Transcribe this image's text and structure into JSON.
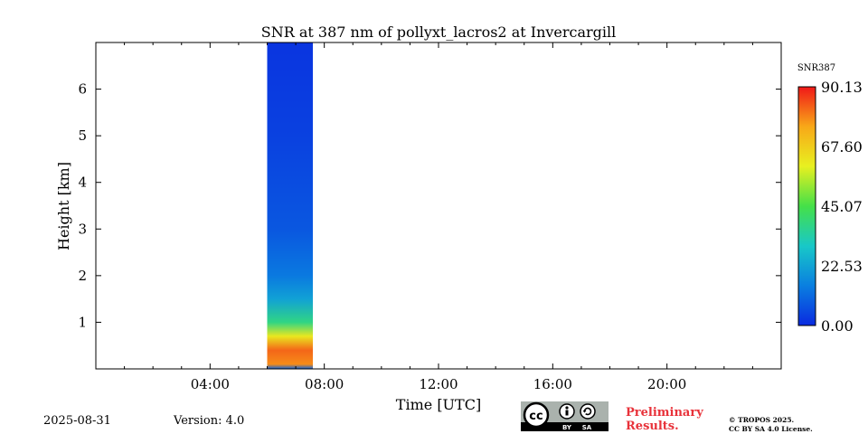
{
  "chart_data": {
    "type": "heatmap",
    "title": "SNR at 387 nm of pollyxt_lacros2 at Invercargill",
    "xlabel": "Time [UTC]",
    "ylabel": "Height [km]",
    "xlim_hours": [
      0,
      24
    ],
    "ylim_km": [
      0,
      7
    ],
    "x_ticks": [
      {
        "hour": 4,
        "label": "04:00"
      },
      {
        "hour": 8,
        "label": "08:00"
      },
      {
        "hour": 12,
        "label": "12:00"
      },
      {
        "hour": 16,
        "label": "16:00"
      },
      {
        "hour": 20,
        "label": "20:00"
      }
    ],
    "y_ticks": [
      {
        "km": 1,
        "label": "1"
      },
      {
        "km": 2,
        "label": "2"
      },
      {
        "km": 3,
        "label": "3"
      },
      {
        "km": 4,
        "label": "4"
      },
      {
        "km": 5,
        "label": "5"
      },
      {
        "km": 6,
        "label": "6"
      }
    ],
    "data_time_range_hours": [
      6.0,
      7.6
    ],
    "snr_profile": [
      {
        "height_km": 0.0,
        "snr": 10
      },
      {
        "height_km": 0.1,
        "snr": 78
      },
      {
        "height_km": 0.4,
        "snr": 82
      },
      {
        "height_km": 0.7,
        "snr": 62
      },
      {
        "height_km": 1.0,
        "snr": 38
      },
      {
        "height_km": 1.5,
        "snr": 22
      },
      {
        "height_km": 2.0,
        "snr": 14
      },
      {
        "height_km": 3.0,
        "snr": 8
      },
      {
        "height_km": 5.0,
        "snr": 4
      },
      {
        "height_km": 7.0,
        "snr": 2
      }
    ],
    "colorbar": {
      "label": "SNR387",
      "min": 0.0,
      "max": 90.13,
      "tick_labels": [
        "0.00",
        "22.53",
        "45.07",
        "67.60",
        "90.13"
      ],
      "colors": [
        "#0a2ae0",
        "#0a7fe0",
        "#18c8c8",
        "#45e048",
        "#e8f020",
        "#f8a818",
        "#f01818"
      ]
    }
  },
  "footer": {
    "date": "2025-08-31",
    "version": "Version: 4.0",
    "preliminary_line1": "Preliminary",
    "preliminary_line2": "Results.",
    "copyright_line1": "© TROPOS 2025.",
    "copyright_line2": "CC BY SA 4.0 License.",
    "cc_by": "BY",
    "cc_sa": "SA",
    "cc_mark": "cc"
  }
}
